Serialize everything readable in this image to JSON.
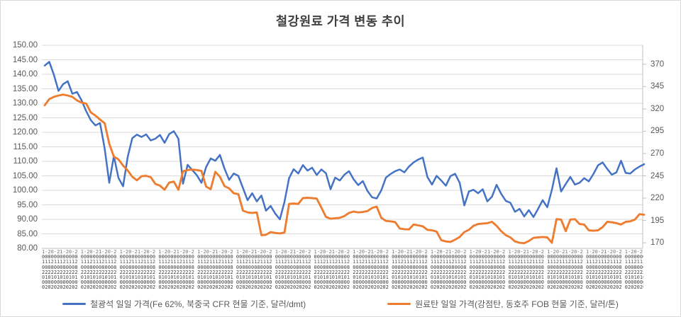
{
  "title": "철강원료 가격 변동 추이",
  "colors": {
    "iron_ore_blue": "#4472C4",
    "coking_coal_orange": "#ED7D31",
    "gridline": "#D9D9D9",
    "axis_line": "#BFBFBF",
    "tick_label": "#595959",
    "title_text": "#404040"
  },
  "legend": {
    "items": [
      {
        "label": "철광석 일일 가격(Fe 62%, 북중국 CFR 현물 기준, 달러/dmt)",
        "color": "#4472C4"
      },
      {
        "label": "원료탄 일일 가격(강점탄, 동호주 FOB 현물 기준, 달러/톤)",
        "color": "#ED7D31"
      }
    ]
  },
  "x_axis_texture": {
    "note": "daily date labels, heavily overlapped and illegible",
    "rows": [
      "1-20-21-20-2 ",
      "000000000000 ",
      "111211121112 ",
      "000800080008 ",
      "222222222222 ",
      "010101010101 ",
      "000000000000 ",
      "020202020202 "
    ]
  },
  "chart_data": {
    "type": "line",
    "title": "철강원료 가격 변동 추이",
    "grid": true,
    "legend_position": "bottom",
    "x_axis": {
      "description": "daily dates (labels overlapping/illegible)"
    },
    "left_axis": {
      "min": 80,
      "max": 150,
      "step": 5,
      "tick_labels": [
        "150.00",
        "145.00",
        "140.00",
        "135.00",
        "130.00",
        "125.00",
        "120.00",
        "115.00",
        "110.00",
        "105.00",
        "100.00",
        "95.00",
        "90.00",
        "85.00",
        "80.00"
      ]
    },
    "right_axis": {
      "tick_values": [
        370,
        345,
        320,
        295,
        270,
        245,
        220,
        195,
        170
      ],
      "tick_labels": [
        "370",
        "345",
        "320",
        "295",
        "270",
        "245",
        "220",
        "195",
        "170"
      ]
    },
    "series": [
      {
        "name": "철광석 일일 가격(Fe 62%, 북중국 CFR 현물 기준, 달러/dmt)",
        "axis": "left",
        "color": "#4472C4",
        "values": [
          143.0,
          144.3,
          139.8,
          134.3,
          136.6,
          137.6,
          133.3,
          133.9,
          131.0,
          127.3,
          124.2,
          122.4,
          123.2,
          114.5,
          102.6,
          111.8,
          104.3,
          101.4,
          111.5,
          118.0,
          119.2,
          118.4,
          119.3,
          117.2,
          117.8,
          119.1,
          116.4,
          119.4,
          120.4,
          117.8,
          102.3,
          108.8,
          107.0,
          105.2,
          102.6,
          108.0,
          111.0,
          110.2,
          112.2,
          107.5,
          103.6,
          105.8,
          105.0,
          100.8,
          96.6,
          99.0,
          96.2,
          98.2,
          93.0,
          94.6,
          92.0,
          90.0,
          96.0,
          104.2,
          107.3,
          105.8,
          108.7,
          106.8,
          107.8,
          105.3,
          107.2,
          105.9,
          100.4,
          104.4,
          103.4,
          105.4,
          106.6,
          103.8,
          101.8,
          103.2,
          99.8,
          97.6,
          97.2,
          100.0,
          104.4,
          105.6,
          106.6,
          107.2,
          106.2,
          108.2,
          109.6,
          110.6,
          111.3,
          104.6,
          102.0,
          105.0,
          103.4,
          101.6,
          104.9,
          105.7,
          102.6,
          94.8,
          99.6,
          100.2,
          99.0,
          100.4,
          96.2,
          97.8,
          101.9,
          98.8,
          96.4,
          95.7,
          92.6,
          93.6,
          91.0,
          93.2,
          90.8,
          93.6,
          96.6,
          94.2,
          100.2,
          107.6,
          99.6,
          102.2,
          104.6,
          102.0,
          102.6,
          104.2,
          103.1,
          105.6,
          108.6,
          109.6,
          107.4,
          105.4,
          106.2,
          110.2,
          106.0,
          105.8,
          107.2,
          108.2,
          109.0
        ]
      },
      {
        "name": "원료탄 일일 가격(강점탄, 동호주 FOB 현물 기준, 달러/톤)",
        "axis": "right",
        "color": "#ED7D31",
        "values": [
          324,
          331,
          333.5,
          335,
          336,
          335,
          333.5,
          329.5,
          327,
          326,
          316,
          312.5,
          308,
          304,
          281,
          266.5,
          263.5,
          256.5,
          251,
          244,
          240,
          244.5,
          245,
          243.5,
          236,
          234,
          229.5,
          237.5,
          238.5,
          229.5,
          250,
          251.5,
          252,
          251.5,
          250.5,
          233,
          230,
          249.5,
          244,
          233.5,
          231,
          225.5,
          224.5,
          206,
          204,
          203.5,
          204,
          178.5,
          179,
          182,
          181,
          180.5,
          181.5,
          213.5,
          214,
          213.5,
          220,
          220.5,
          220,
          219.5,
          209.5,
          199,
          197,
          197.5,
          198,
          200,
          203.5,
          205,
          204,
          204.5,
          205.5,
          209,
          210.5,
          198,
          194.5,
          194,
          193.2,
          186,
          185.2,
          185,
          190.5,
          189.5,
          188.5,
          184.5,
          184,
          182.5,
          173,
          171.5,
          171,
          173.5,
          176.5,
          182,
          184.5,
          189,
          191,
          191.5,
          192,
          193.5,
          189,
          183,
          178.5,
          176,
          171.5,
          170,
          169.5,
          172,
          175.5,
          176,
          176.5,
          176,
          170,
          196.5,
          196,
          183,
          196,
          196.5,
          191,
          190.5,
          184,
          183.5,
          184,
          187.5,
          193.5,
          193,
          192,
          190.5,
          193.5,
          194,
          196,
          202,
          201.5
        ]
      }
    ]
  }
}
